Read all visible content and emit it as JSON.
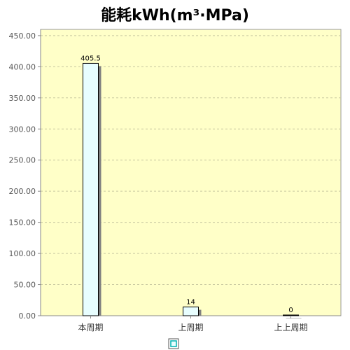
{
  "chart_data": {
    "type": "bar",
    "title": "能耗kWh(m³·MPa)",
    "categories": [
      "本周期",
      "上周期",
      "上上周期"
    ],
    "series": [
      {
        "values": [
          405.5,
          14,
          0
        ],
        "data_labels": [
          "405.5",
          "14",
          "0"
        ]
      }
    ],
    "ylim": [
      0,
      460
    ],
    "yticks": [
      0,
      50,
      100,
      150,
      200,
      250,
      300,
      350,
      400,
      450
    ],
    "ytick_labels": [
      "0.00",
      "50.00",
      "100.00",
      "150.00",
      "200.00",
      "250.00",
      "300.00",
      "350.00",
      "400.00",
      "450.00"
    ],
    "grid": true,
    "legend": "bottom",
    "colors": {
      "plot_background": "#FFFFC8",
      "bar_fill": "#E8FEFF",
      "bar_stroke": "#000000",
      "bar_shadow": "#808080",
      "grid": "#C8C8A0",
      "legend_swatch": "#00B0B0"
    }
  }
}
